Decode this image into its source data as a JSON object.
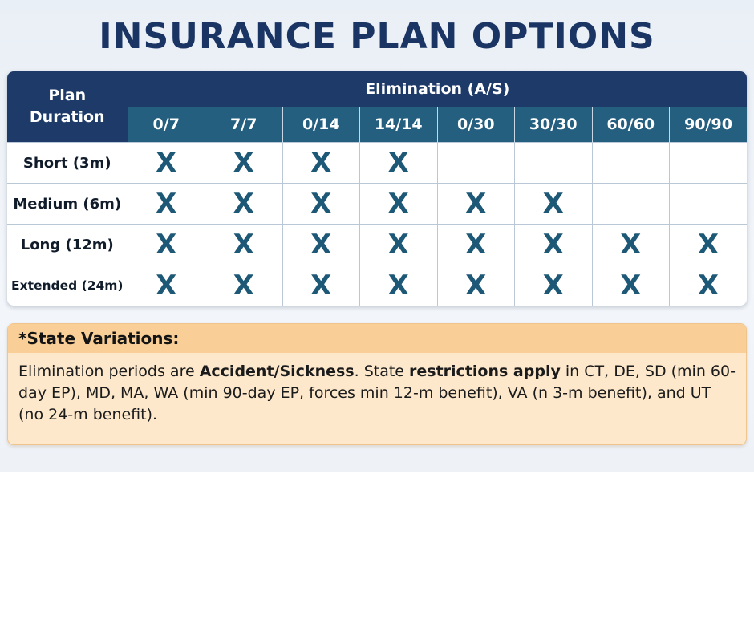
{
  "title": "INSURANCE PLAN OPTIONS",
  "table": {
    "row_header_line1": "Plan",
    "row_header_line2": "Duration",
    "group_header": "Elimination (A/S)",
    "columns": [
      "0/7",
      "7/7",
      "0/14",
      "14/14",
      "0/30",
      "30/30",
      "60/60",
      "90/90"
    ],
    "mark_symbol": "X",
    "rows": [
      {
        "label": "Short (3m)",
        "available": [
          true,
          true,
          true,
          true,
          false,
          false,
          false,
          false
        ]
      },
      {
        "label": "Medium (6m)",
        "available": [
          true,
          true,
          true,
          true,
          true,
          true,
          false,
          false
        ]
      },
      {
        "label": "Long (12m)",
        "available": [
          true,
          true,
          true,
          true,
          true,
          true,
          true,
          true
        ]
      },
      {
        "label": "Extended (24m)",
        "available": [
          true,
          true,
          true,
          true,
          true,
          true,
          true,
          true
        ]
      }
    ]
  },
  "note": {
    "heading": "*State Variations:",
    "seg1": "Elimination periods are ",
    "seg2_bold": "Accident/Sickness",
    "seg3": ". State ",
    "seg4_bold": "restrictions apply",
    "seg5": " in CT, DE, SD (min 60-day EP), MD, MA, WA (min 90-day EP, forces min 12-m benefit), VA (n 3-m benefit), and UT (no 24-m benefit)."
  },
  "colors": {
    "header_navy": "#1e3a68",
    "header_teal": "#245f80",
    "mark": "#1d5876",
    "note_bg": "#fde8cc",
    "note_head_bg": "#f9cf97"
  }
}
